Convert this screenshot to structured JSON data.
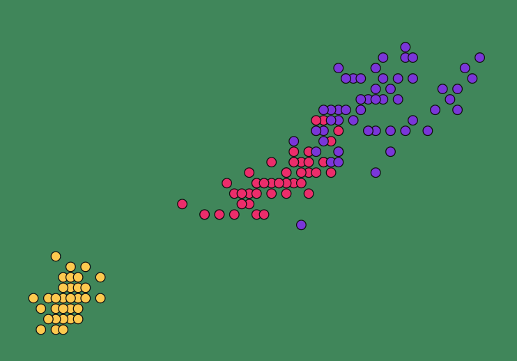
{
  "chart_data": {
    "type": "scatter",
    "background_color": "#40865a",
    "xlim": [
      0.55,
      7.5
    ],
    "ylim": [
      -0.4,
      3.05
    ],
    "grid": false,
    "axes_visible": false,
    "legend": "none",
    "series": [
      {
        "color": "#fdc94f",
        "edge_color": "#111111",
        "points": [
          [
            1.3,
            0.6
          ],
          [
            1.5,
            0.5
          ],
          [
            1.7,
            0.5
          ],
          [
            1.4,
            0.4
          ],
          [
            1.5,
            0.4
          ],
          [
            1.6,
            0.4
          ],
          [
            1.5,
            0.3
          ],
          [
            1.4,
            0.3
          ],
          [
            1.6,
            0.3
          ],
          [
            1.4,
            0.2
          ],
          [
            1.5,
            0.2
          ],
          [
            1.6,
            0.2
          ],
          [
            1.7,
            0.2
          ],
          [
            1.9,
            0.2
          ],
          [
            1.2,
            0.2
          ],
          [
            1.3,
            0.2
          ],
          [
            1.4,
            0.1
          ],
          [
            1.5,
            0.1
          ],
          [
            1.6,
            0.1
          ],
          [
            1.3,
            0.1
          ],
          [
            1.1,
            0.1
          ],
          [
            1.0,
            0.2
          ],
          [
            1.9,
            0.4
          ],
          [
            1.7,
            0.3
          ],
          [
            1.5,
            0.0
          ],
          [
            1.4,
            0.0
          ],
          [
            1.3,
            0.0
          ],
          [
            1.2,
            0.0
          ],
          [
            1.1,
            -0.1
          ],
          [
            1.3,
            -0.1
          ],
          [
            1.4,
            -0.1
          ],
          [
            1.5,
            0.2
          ],
          [
            1.6,
            0.0
          ],
          [
            1.4,
            0.1
          ]
        ]
      },
      {
        "color": "#ec2d6b",
        "edge_color": "#111111",
        "points": [
          [
            4.7,
            1.4
          ],
          [
            4.5,
            1.5
          ],
          [
            4.9,
            1.5
          ],
          [
            4.0,
            1.3
          ],
          [
            4.6,
            1.5
          ],
          [
            4.5,
            1.3
          ],
          [
            4.7,
            1.6
          ],
          [
            3.3,
            1.0
          ],
          [
            4.6,
            1.3
          ],
          [
            3.9,
            1.4
          ],
          [
            3.5,
            1.0
          ],
          [
            4.2,
            1.5
          ],
          [
            4.0,
            1.0
          ],
          [
            4.7,
            1.4
          ],
          [
            3.6,
            1.3
          ],
          [
            4.4,
            1.4
          ],
          [
            4.5,
            1.5
          ],
          [
            4.1,
            1.0
          ],
          [
            4.5,
            1.5
          ],
          [
            3.9,
            1.1
          ],
          [
            4.8,
            1.8
          ],
          [
            4.0,
            1.3
          ],
          [
            4.9,
            1.5
          ],
          [
            4.7,
            1.2
          ],
          [
            4.3,
            1.3
          ],
          [
            4.4,
            1.4
          ],
          [
            4.8,
            1.4
          ],
          [
            5.0,
            1.7
          ],
          [
            4.5,
            1.5
          ],
          [
            3.5,
            1.0
          ],
          [
            3.8,
            1.1
          ],
          [
            3.7,
            1.0
          ],
          [
            3.9,
            1.2
          ],
          [
            5.1,
            1.6
          ],
          [
            4.5,
            1.5
          ],
          [
            4.5,
            1.6
          ],
          [
            4.7,
            1.5
          ],
          [
            4.4,
            1.3
          ],
          [
            4.1,
            1.3
          ],
          [
            4.0,
            1.3
          ],
          [
            4.4,
            1.2
          ],
          [
            4.6,
            1.4
          ],
          [
            4.0,
            1.2
          ],
          [
            3.3,
            1.0
          ],
          [
            4.2,
            1.3
          ],
          [
            4.2,
            1.2
          ],
          [
            4.3,
            1.3
          ],
          [
            3.0,
            1.1
          ],
          [
            4.1,
            1.3
          ],
          [
            4.8,
            1.8
          ],
          [
            5.0,
            1.4
          ],
          [
            4.9,
            1.5
          ],
          [
            5.1,
            1.8
          ],
          [
            4.4,
            1.4
          ],
          [
            3.7,
            1.2
          ],
          [
            3.8,
            1.2
          ],
          [
            4.7,
            1.6
          ],
          [
            4.9,
            1.9
          ],
          [
            4.8,
            1.9
          ]
        ]
      },
      {
        "color": "#7a36d9",
        "edge_color": "#111111",
        "points": [
          [
            6.0,
            2.5
          ],
          [
            5.1,
            1.9
          ],
          [
            5.9,
            2.1
          ],
          [
            5.6,
            1.8
          ],
          [
            5.8,
            2.2
          ],
          [
            6.6,
            2.1
          ],
          [
            4.5,
            1.7
          ],
          [
            6.3,
            1.8
          ],
          [
            5.8,
            1.8
          ],
          [
            6.1,
            2.5
          ],
          [
            5.1,
            2.0
          ],
          [
            5.3,
            1.9
          ],
          [
            5.5,
            2.1
          ],
          [
            5.0,
            2.0
          ],
          [
            5.1,
            2.4
          ],
          [
            5.3,
            2.3
          ],
          [
            5.5,
            1.8
          ],
          [
            6.7,
            2.2
          ],
          [
            6.9,
            2.3
          ],
          [
            5.0,
            1.5
          ],
          [
            5.7,
            2.3
          ],
          [
            4.9,
            2.0
          ],
          [
            6.7,
            2.0
          ],
          [
            4.9,
            1.8
          ],
          [
            5.7,
            2.1
          ],
          [
            6.0,
            1.8
          ],
          [
            4.8,
            1.8
          ],
          [
            5.6,
            2.1
          ],
          [
            5.8,
            1.6
          ],
          [
            6.1,
            1.9
          ],
          [
            6.4,
            2.0
          ],
          [
            5.6,
            2.2
          ],
          [
            5.1,
            1.5
          ],
          [
            5.6,
            1.4
          ],
          [
            6.1,
            2.3
          ],
          [
            5.6,
            2.4
          ],
          [
            5.5,
            1.8
          ],
          [
            5.4,
            2.1
          ],
          [
            5.6,
            2.4
          ],
          [
            5.2,
            2.3
          ],
          [
            5.9,
            2.3
          ],
          [
            5.7,
            2.5
          ],
          [
            5.2,
            2.0
          ],
          [
            5.0,
            1.9
          ],
          [
            5.2,
            2.3
          ],
          [
            5.4,
            2.3
          ],
          [
            7.0,
            2.5
          ],
          [
            6.8,
            2.4
          ],
          [
            6.5,
            2.2
          ],
          [
            4.6,
            0.9
          ],
          [
            5.4,
            2.0
          ],
          [
            4.8,
            1.6
          ],
          [
            4.9,
            1.7
          ],
          [
            6.0,
            2.6
          ],
          [
            5.1,
            1.6
          ]
        ]
      }
    ]
  }
}
